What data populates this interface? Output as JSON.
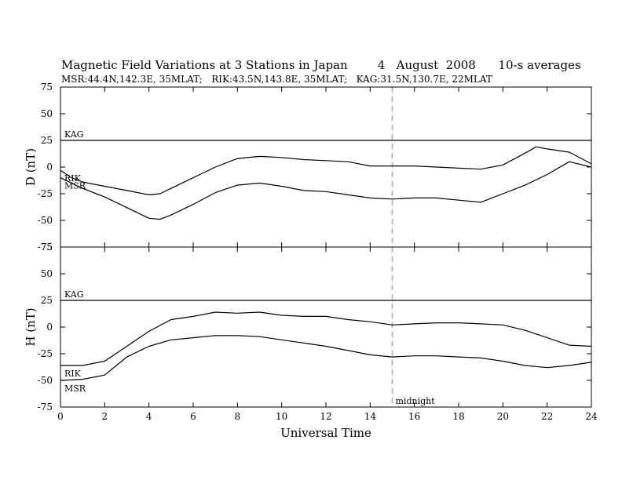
{
  "header": {
    "title": "Magnetic Field Variations at 3 Stations in Japan        4   August  2008      10-s averages",
    "subtitle": "MSR:44.4N,142.3E, 35MLAT;   RIK:43.5N,143.8E, 35MLAT;   KAG:31.5N,130.7E, 22MLAT"
  },
  "chart_data": {
    "type": "line",
    "xlabel": "Universal Time",
    "xlim": [
      0,
      24
    ],
    "xticks": [
      "0",
      "2",
      "4",
      "6",
      "8",
      "10",
      "12",
      "14",
      "16",
      "18",
      "20",
      "22",
      "24"
    ],
    "marker": {
      "x": 15,
      "label": "midnight",
      "style": "dashed",
      "color": "#aaaaaa"
    },
    "panels": [
      {
        "ylabel": "D (nT)",
        "ylim": [
          -75,
          75
        ],
        "yticks": [
          "75",
          "50",
          "25",
          "0",
          "-25",
          "-50",
          "-75"
        ],
        "series": [
          {
            "name": "KAG",
            "x": [
              0,
              24
            ],
            "values": [
              25,
              25
            ]
          },
          {
            "name": "RIK",
            "x": [
              0,
              0.5,
              1,
              2,
              3,
              4,
              4.5,
              5,
              6,
              7,
              8,
              9,
              10,
              11,
              12,
              13,
              14,
              15,
              16,
              17,
              18,
              19,
              20,
              21,
              21.5,
              22,
              23,
              24
            ],
            "values": [
              -3,
              -10,
              -14,
              -18,
              -22,
              -26,
              -25,
              -20,
              -10,
              0,
              8,
              10,
              9,
              7,
              6,
              5,
              1,
              1,
              1,
              0,
              -1,
              -2,
              2,
              13,
              19,
              17,
              14,
              3
            ]
          },
          {
            "name": "MSR",
            "x": [
              0,
              0.5,
              1,
              2,
              3,
              4,
              4.5,
              5,
              6,
              7,
              8,
              9,
              10,
              11,
              12,
              13,
              14,
              15,
              16,
              17,
              18,
              19,
              20,
              21,
              22,
              23,
              24
            ],
            "values": [
              -10,
              -15,
              -20,
              -28,
              -38,
              -48,
              -49,
              -45,
              -35,
              -24,
              -17,
              -15,
              -18,
              -22,
              -23,
              -26,
              -29,
              -30,
              -29,
              -29,
              -31,
              -33,
              -25,
              -17,
              -7,
              5,
              0
            ]
          }
        ]
      },
      {
        "ylabel": "H (nT)",
        "ylim": [
          -75,
          75
        ],
        "yticks": [
          "75",
          "50",
          "25",
          "0",
          "-25",
          "-50",
          "-75"
        ],
        "series": [
          {
            "name": "KAG",
            "x": [
              0,
              24
            ],
            "values": [
              25,
              25
            ]
          },
          {
            "name": "RIK",
            "x": [
              0,
              1,
              2,
              3,
              4,
              5,
              6,
              7,
              8,
              9,
              10,
              11,
              12,
              13,
              14,
              15,
              16,
              17,
              18,
              19,
              20,
              21,
              22,
              23,
              24
            ],
            "values": [
              -36,
              -36,
              -32,
              -18,
              -4,
              7,
              10,
              14,
              13,
              14,
              11,
              10,
              10,
              7,
              5,
              2,
              3,
              4,
              4,
              3,
              2,
              -3,
              -10,
              -17,
              -18
            ]
          },
          {
            "name": "MSR",
            "x": [
              0,
              1,
              2,
              3,
              4,
              5,
              6,
              7,
              8,
              9,
              10,
              11,
              12,
              13,
              14,
              15,
              16,
              17,
              18,
              19,
              20,
              21,
              22,
              23,
              24
            ],
            "values": [
              -50,
              -49,
              -45,
              -28,
              -18,
              -12,
              -10,
              -8,
              -8,
              -9,
              -12,
              -15,
              -18,
              -22,
              -26,
              -28,
              -27,
              -27,
              -28,
              -29,
              -32,
              -36,
              -38,
              -36,
              -33
            ]
          }
        ]
      }
    ]
  }
}
